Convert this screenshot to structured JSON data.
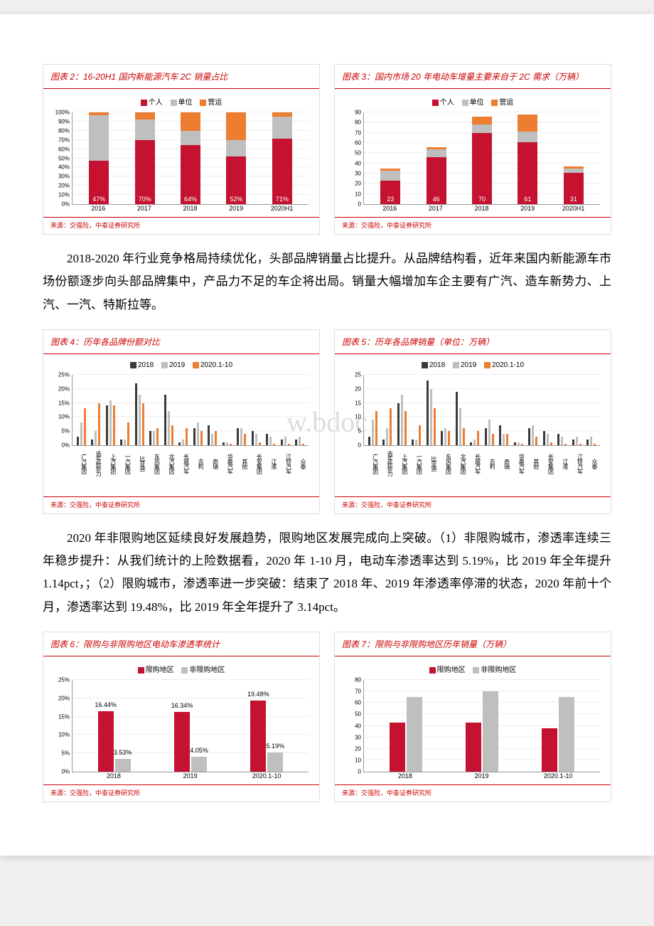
{
  "colors": {
    "personal": "#c41230",
    "unit": "#bfbfbf",
    "operating": "#ed7d31",
    "y2018": "#3b3b3b",
    "y2019": "#bfbfbf",
    "y2020": "#ed7d31",
    "limited": "#c41230",
    "unlimited": "#bfbfbf",
    "accent": "#c00"
  },
  "chart2": {
    "title": "图表 2：16-20H1 国内新能源汽车 2C 销量占比",
    "source": "来源：交强险，中泰证券研究所",
    "legend": [
      "个人",
      "单位",
      "营运"
    ],
    "categories": [
      "2016",
      "2017",
      "2018",
      "2019",
      "2020H1"
    ],
    "ymax": 100,
    "ytick_step": 10,
    "y_suffix": "%",
    "series": {
      "personal": [
        47,
        70,
        64,
        52,
        71
      ],
      "unit": [
        50,
        22,
        16,
        18,
        24
      ],
      "operating": [
        3,
        8,
        20,
        30,
        5
      ]
    },
    "labels": [
      "47%",
      "70%",
      "64%",
      "52%",
      "71%"
    ]
  },
  "chart3": {
    "title": "图表 3：国内市场 20 年电动车增量主要来自于 2C 需求（万辆）",
    "source": "来源：交强险，中泰证券研究所",
    "legend": [
      "个人",
      "单位",
      "营运"
    ],
    "categories": [
      "2016",
      "2017",
      "2018",
      "2019",
      "2020H1"
    ],
    "ymax": 90,
    "ytick_step": 10,
    "series": {
      "personal": [
        23,
        46,
        70,
        61,
        31
      ],
      "unit": [
        10,
        8,
        8,
        10,
        4
      ],
      "operating": [
        2,
        2,
        8,
        17,
        2
      ]
    },
    "labels": [
      "23",
      "46",
      "70",
      "61",
      "31"
    ]
  },
  "para1": "2018-2020 年行业竞争格局持续优化，头部品牌销量占比提升。从品牌结构看，近年来国内新能源车市场份额逐步向头部品牌集中，产品力不足的车企将出局。销量大幅增加车企主要有广汽、造车新势力、上汽、一汽、特斯拉等。",
  "chart4": {
    "title": "图表 4：历年各品牌份额对比",
    "source": "来源：交强险，中泰证券研究所",
    "legend": [
      "2018",
      "2019",
      "2020.1-10"
    ],
    "categories": [
      "广汽集团",
      "造车新势力",
      "上汽集团",
      "一汽集团",
      "比亚迪",
      "东风集团",
      "北汽集团",
      "长城汽车",
      "吉利",
      "奇瑞",
      "华晨汽车",
      "其他",
      "长安集团",
      "江淮",
      "江铃汽车",
      "众泰"
    ],
    "ymax": 25,
    "ytick_step": 5,
    "y_suffix": "%",
    "series": {
      "y2018": [
        3,
        2,
        14,
        2,
        22,
        5,
        18,
        1,
        6,
        7,
        1,
        6,
        5,
        4,
        2,
        2
      ],
      "y2019": [
        8,
        5,
        16,
        2,
        18,
        5,
        12,
        2,
        8,
        4,
        1,
        6,
        4,
        3,
        3,
        3
      ],
      "y2020": [
        13,
        15,
        14,
        8,
        15,
        6,
        7,
        6,
        5,
        5,
        0.5,
        4,
        1,
        0.5,
        0.5,
        0.5
      ]
    }
  },
  "chart5": {
    "title": "图表 5：历年各品牌销量（单位：万辆）",
    "source": "来源：交强险，中泰证券研究所",
    "legend": [
      "2018",
      "2019",
      "2020.1-10"
    ],
    "categories": [
      "广汽集团",
      "造车新势力",
      "上汽集团",
      "一汽集团",
      "比亚迪",
      "东风集团",
      "北汽集团",
      "长城汽车",
      "吉利",
      "奇瑞",
      "华晨汽车",
      "其他",
      "长安集团",
      "江淮",
      "江铃汽车",
      "众泰"
    ],
    "ymax": 25,
    "ytick_step": 5,
    "series": {
      "y2018": [
        3,
        2,
        15,
        2,
        23,
        5,
        19,
        1,
        6,
        7,
        1,
        6,
        5,
        4,
        2,
        2
      ],
      "y2019": [
        9,
        6,
        18,
        2,
        20,
        6,
        13,
        2,
        9,
        4,
        1,
        7,
        4,
        3,
        3,
        3
      ],
      "y2020": [
        12,
        13,
        12,
        7,
        13,
        5,
        6,
        5,
        4,
        4,
        0.5,
        3,
        1,
        0.5,
        0.5,
        0.5
      ]
    }
  },
  "para2": "2020 年非限购地区延续良好发展趋势，限购地区发展完成向上突破。（1）非限购城市，渗透率连续三年稳步提升：从我们统计的上险数据看，2020 年 1-10 月，电动车渗透率达到 5.19%，比 2019 年全年提升 1.14pct，；（2）限购城市，渗透率进一步突破：结束了 2018 年、2019 年渗透率停滞的状态，2020 年前十个月，渗透率达到 19.48%，比 2019 年全年提升了 3.14pct。",
  "chart6": {
    "title": "图表 6：限购与非限购地区电动车渗透率统计",
    "source": "来源：交强险，中泰证券研究所",
    "legend": [
      "限购地区",
      "非限购地区"
    ],
    "categories": [
      "2018",
      "2019",
      "2020.1-10"
    ],
    "ymax": 25,
    "ytick_step": 5,
    "y_suffix": "%",
    "series": {
      "limited": [
        16.44,
        16.34,
        19.48
      ],
      "unlimited": [
        3.53,
        4.05,
        5.19
      ]
    },
    "labels_limited": [
      "16.44%",
      "16.34%",
      "19.48%"
    ],
    "labels_unlimited": [
      "3.53%",
      "4.05%",
      "5.19%"
    ]
  },
  "chart7": {
    "title": "图表 7：限购与非限购地区历年销量（万辆）",
    "source": "来源：交强险，中泰证券研究所",
    "legend": [
      "限购地区",
      "非限购地区"
    ],
    "categories": [
      "2018",
      "2019",
      "2020.1-10"
    ],
    "ymax": 80,
    "ytick_step": 10,
    "series": {
      "limited": [
        43,
        43,
        38
      ],
      "unlimited": [
        65,
        70,
        65
      ]
    }
  }
}
